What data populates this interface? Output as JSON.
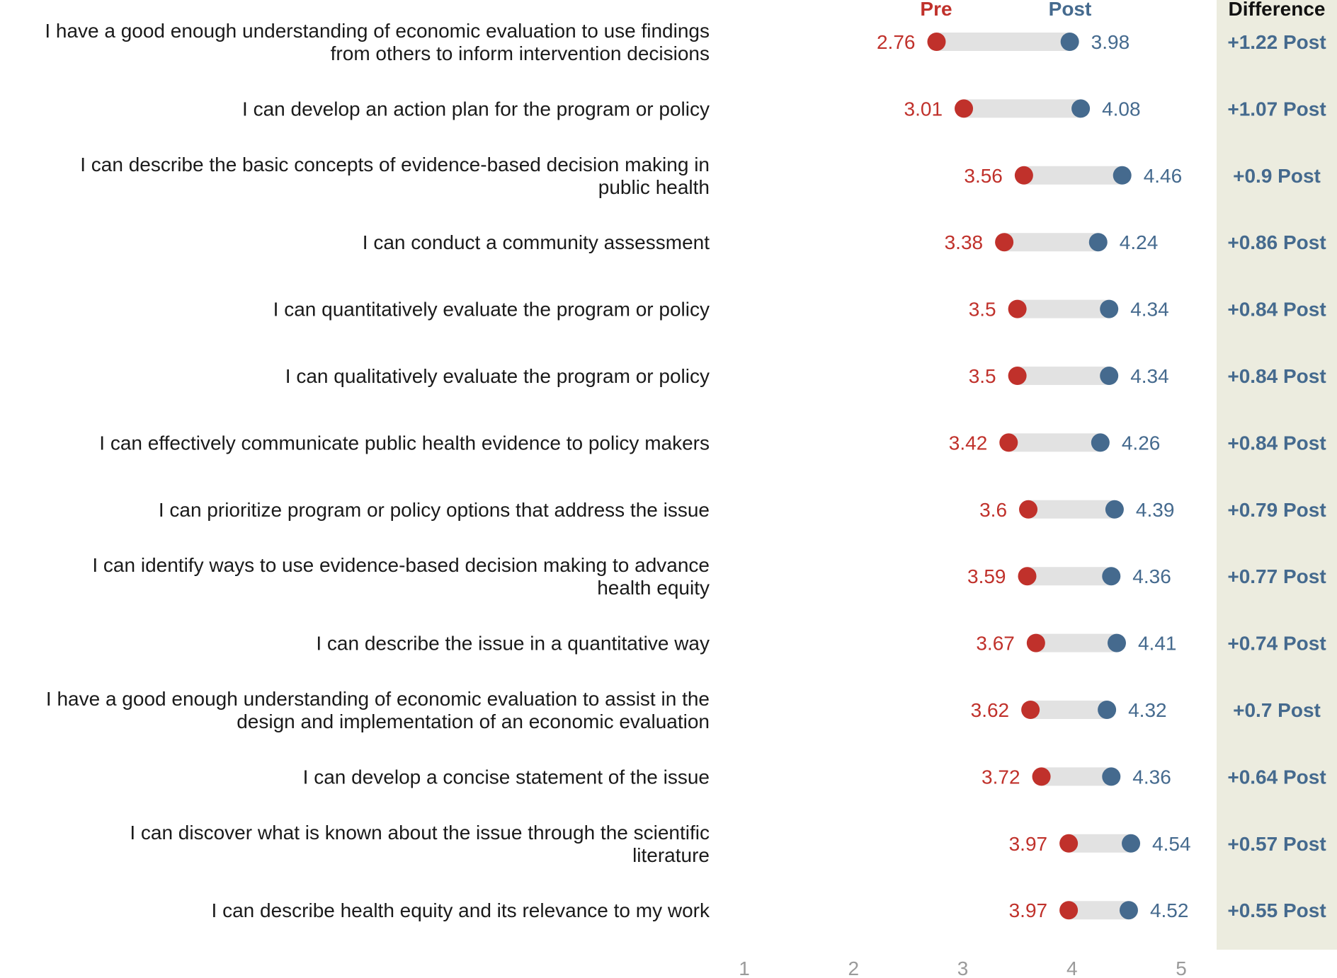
{
  "chart_data": {
    "type": "dumbbell",
    "legend": {
      "pre": "Pre",
      "post": "Post",
      "difference": "Difference"
    },
    "xlim": [
      1,
      5
    ],
    "xticks": [
      "1",
      "2",
      "3",
      "4",
      "5"
    ],
    "colors": {
      "pre": "#c0312b",
      "post": "#456a8e",
      "connector": "#e2e2e2",
      "diff_panel": "#ececdf"
    },
    "rows": [
      {
        "label": [
          "I have a good enough understanding of economic evaluation to use findings",
          "from others to inform intervention decisions"
        ],
        "pre": 2.76,
        "post": 3.98,
        "pre_label": "2.76",
        "post_label": "3.98",
        "diff": "+1.22 Post"
      },
      {
        "label": [
          "I can develop an action plan for the program or policy"
        ],
        "pre": 3.01,
        "post": 4.08,
        "pre_label": "3.01",
        "post_label": "4.08",
        "diff": "+1.07 Post"
      },
      {
        "label": [
          "I can describe the basic concepts of evidence-based decision making in",
          "public health"
        ],
        "pre": 3.56,
        "post": 4.46,
        "pre_label": "3.56",
        "post_label": "4.46",
        "diff": "+0.9 Post"
      },
      {
        "label": [
          "I can conduct a community assessment"
        ],
        "pre": 3.38,
        "post": 4.24,
        "pre_label": "3.38",
        "post_label": "4.24",
        "diff": "+0.86 Post"
      },
      {
        "label": [
          "I can quantitatively evaluate the program or policy"
        ],
        "pre": 3.5,
        "post": 4.34,
        "pre_label": "3.5",
        "post_label": "4.34",
        "diff": "+0.84 Post"
      },
      {
        "label": [
          "I can qualitatively evaluate the program or policy"
        ],
        "pre": 3.5,
        "post": 4.34,
        "pre_label": "3.5",
        "post_label": "4.34",
        "diff": "+0.84 Post"
      },
      {
        "label": [
          "I can effectively communicate public health evidence to policy makers"
        ],
        "pre": 3.42,
        "post": 4.26,
        "pre_label": "3.42",
        "post_label": "4.26",
        "diff": "+0.84 Post"
      },
      {
        "label": [
          "I can prioritize program or policy options that address the issue"
        ],
        "pre": 3.6,
        "post": 4.39,
        "pre_label": "3.6",
        "post_label": "4.39",
        "diff": "+0.79 Post"
      },
      {
        "label": [
          "I can identify ways to use evidence-based decision making to advance",
          "health equity"
        ],
        "pre": 3.59,
        "post": 4.36,
        "pre_label": "3.59",
        "post_label": "4.36",
        "diff": "+0.77 Post"
      },
      {
        "label": [
          "I can describe the issue in a quantitative way"
        ],
        "pre": 3.67,
        "post": 4.41,
        "pre_label": "3.67",
        "post_label": "4.41",
        "diff": "+0.74 Post"
      },
      {
        "label": [
          "I have a good enough understanding of economic evaluation to assist in the",
          "design and implementation of an economic evaluation"
        ],
        "pre": 3.62,
        "post": 4.32,
        "pre_label": "3.62",
        "post_label": "4.32",
        "diff": "+0.7 Post"
      },
      {
        "label": [
          "I can develop a concise statement of the issue"
        ],
        "pre": 3.72,
        "post": 4.36,
        "pre_label": "3.72",
        "post_label": "4.36",
        "diff": "+0.64 Post"
      },
      {
        "label": [
          "I can discover what is known about the issue through the scientific",
          "literature"
        ],
        "pre": 3.97,
        "post": 4.54,
        "pre_label": "3.97",
        "post_label": "4.54",
        "diff": "+0.57 Post"
      },
      {
        "label": [
          "I can describe health equity and its relevance to my work"
        ],
        "pre": 3.97,
        "post": 4.52,
        "pre_label": "3.97",
        "post_label": "4.52",
        "diff": "+0.55 Post"
      }
    ]
  }
}
